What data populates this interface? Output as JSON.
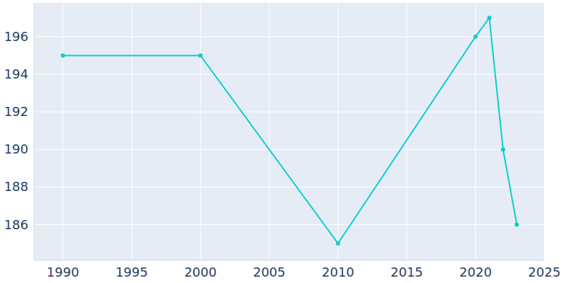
{
  "chart_data": {
    "type": "line",
    "x": [
      1990,
      2000,
      2010,
      2020,
      2021,
      2022,
      2023
    ],
    "values": [
      195,
      195,
      185,
      196,
      197,
      190,
      186
    ],
    "color": "#0fcdcb",
    "marker": "circle",
    "xlim": [
      1987.9,
      2025
    ],
    "xticks": [
      1990,
      1995,
      2000,
      2005,
      2010,
      2015,
      2020,
      2025
    ],
    "ylim": [
      184.1,
      197.8
    ],
    "yticks": [
      186,
      188,
      190,
      192,
      194,
      196
    ],
    "grid": true
  }
}
